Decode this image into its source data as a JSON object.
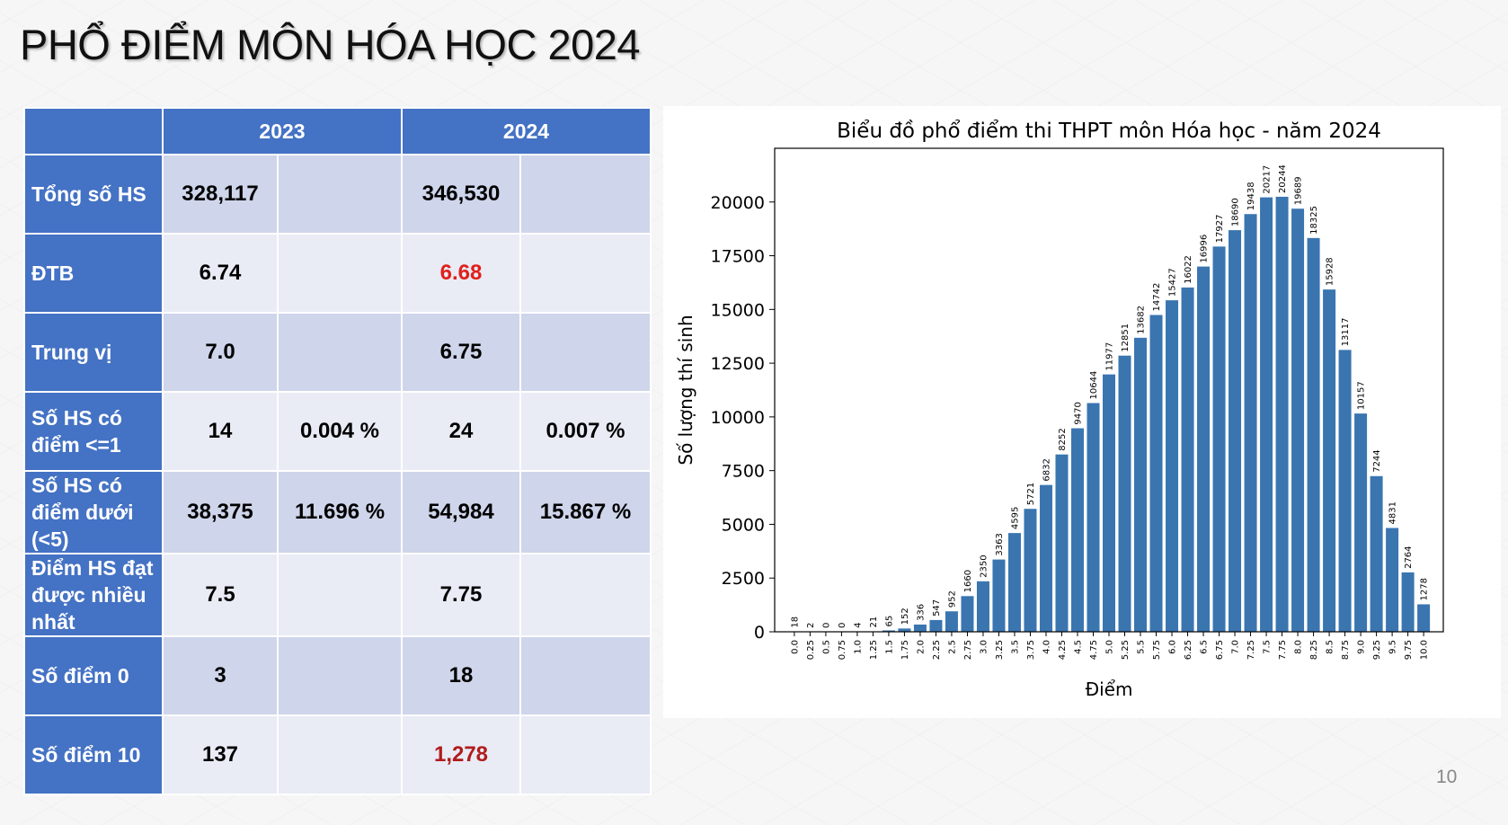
{
  "page": {
    "title": "PHỔ ĐIỂM MÔN HÓA HỌC 2024",
    "page_number": "10"
  },
  "table": {
    "headers": [
      "",
      "2023",
      "2024"
    ],
    "rows": [
      {
        "label": "Tổng số HS",
        "y2023": "328,117",
        "p2023": "",
        "y2024": "346,530",
        "p2024": ""
      },
      {
        "label": "ĐTB",
        "y2023": "6.74",
        "p2023": "",
        "y2024": "6.68",
        "p2024": ""
      },
      {
        "label": "Trung vị",
        "y2023": "7.0",
        "p2023": "",
        "y2024": "6.75",
        "p2024": ""
      },
      {
        "label": "Số HS có điểm <=1",
        "y2023": "14",
        "p2023": "0.004 %",
        "y2024": "24",
        "p2024": "0.007 %"
      },
      {
        "label": "Số HS có điểm dưới (<5)",
        "y2023": "38,375",
        "p2023": "11.696 %",
        "y2024": "54,984",
        "p2024": "15.867 %"
      },
      {
        "label": "Điểm HS đạt được nhiều nhất",
        "y2023": "7.5",
        "p2023": "",
        "y2024": "7.75",
        "p2024": ""
      },
      {
        "label": "Số điểm 0",
        "y2023": "3",
        "p2023": "",
        "y2024": "18",
        "p2024": ""
      },
      {
        "label": "Số điểm 10",
        "y2023": "137",
        "p2023": "",
        "y2024": "1,278",
        "p2024": ""
      }
    ],
    "colors": {
      "header_bg": "#4472c4",
      "row_odd_bg": "#cfd5ea",
      "row_even_bg": "#e9ebf5",
      "highlight_red": "#e0201b",
      "highlight_darkred": "#b01c1c"
    }
  },
  "chart_data": {
    "type": "bar",
    "title": "Biểu đồ phổ điểm thi THPT môn Hóa học - năm 2024",
    "xlabel": "Điểm",
    "ylabel": "Số lượng thí sinh",
    "categories": [
      "0.0",
      "0.25",
      "0.5",
      "0.75",
      "1.0",
      "1.25",
      "1.5",
      "1.75",
      "2.0",
      "2.25",
      "2.5",
      "2.75",
      "3.0",
      "3.25",
      "3.5",
      "3.75",
      "4.0",
      "4.25",
      "4.5",
      "4.75",
      "5.0",
      "5.25",
      "5.5",
      "5.75",
      "6.0",
      "6.25",
      "6.5",
      "6.75",
      "7.0",
      "7.25",
      "7.5",
      "7.75",
      "8.0",
      "8.25",
      "8.5",
      "8.75",
      "9.0",
      "9.25",
      "9.5",
      "9.75",
      "10.0"
    ],
    "values": [
      18,
      2,
      0,
      0,
      4,
      21,
      65,
      152,
      336,
      547,
      952,
      1660,
      2350,
      3363,
      4595,
      5721,
      6832,
      8252,
      9470,
      10644,
      11977,
      12851,
      13682,
      14742,
      15427,
      16022,
      16996,
      17927,
      18690,
      19438,
      20217,
      20244,
      19689,
      18325,
      15928,
      13117,
      10157,
      7244,
      4831,
      2764,
      1278
    ],
    "ylim": [
      0,
      22500
    ],
    "yticks": [
      0,
      2500,
      5000,
      7500,
      10000,
      12500,
      15000,
      17500,
      20000
    ],
    "bar_color": "#3a75b0",
    "grid": false
  }
}
